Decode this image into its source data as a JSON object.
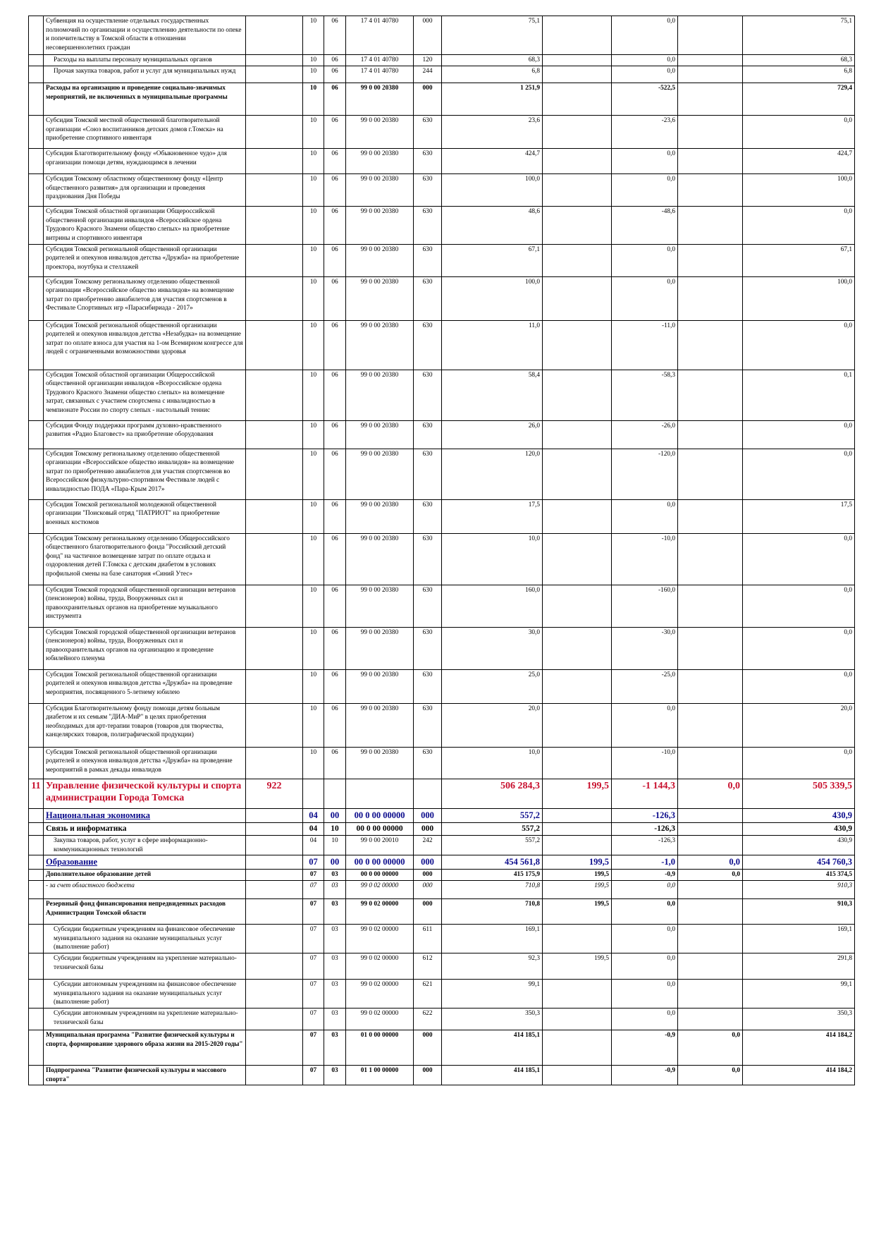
{
  "rows": [
    {
      "num": "",
      "name": "Субвенция на осуществление отдельных государственных полномочий по организации и осуществлению деятельности по опеке и попечительству в Томской области в отношении несовершеннолетних граждан",
      "code": "",
      "rz": "10",
      "pr": "06",
      "csr": "17 4 01 40780",
      "vr": "000",
      "v1": "75,1",
      "v2": "",
      "v3": "0,0",
      "v4": "",
      "v5": "75,1"
    },
    {
      "num": "",
      "name": "Расходы на выплаты персоналу муниципальных органов",
      "code": "",
      "rz": "10",
      "pr": "06",
      "csr": "17 4 01 40780",
      "vr": "120",
      "v1": "68,3",
      "v2": "",
      "v3": "0,0",
      "v4": "",
      "v5": "68,3"
    },
    {
      "num": "",
      "name": "Прочая закупка товаров, работ и услуг для муниципальных нужд",
      "code": "",
      "rz": "10",
      "pr": "06",
      "csr": "17 4 01 40780",
      "vr": "244",
      "v1": "6,8",
      "v2": "",
      "v3": "0,0",
      "v4": "",
      "v5": "6,8"
    },
    {
      "num": "",
      "name": "Расходы на организацию и проведение социально-значимых мероприятий, не включенных в муниципальные программы",
      "code": "",
      "rz": "10",
      "pr": "06",
      "csr": "99 0 00 20380",
      "vr": "000",
      "v1": "1 251,9",
      "v2": "",
      "v3": "-522,5",
      "v4": "",
      "v5": "729,4"
    },
    {
      "num": "",
      "name": "Субсидия Томской местной общественной благотворительной организации «Союз воспитанников детских домов г.Томска» на приобретение спортивного инвентаря",
      "code": "",
      "rz": "10",
      "pr": "06",
      "csr": "99 0 00 20380",
      "vr": "630",
      "v1": "23,6",
      "v2": "",
      "v3": "-23,6",
      "v4": "",
      "v5": "0,0"
    },
    {
      "num": "",
      "name": "Субсидия Благотворительному фонду «Обыкновенное чудо» для организации помощи детям, нуждающимся в лечении",
      "code": "",
      "rz": "10",
      "pr": "06",
      "csr": "99 0 00 20380",
      "vr": "630",
      "v1": "424,7",
      "v2": "",
      "v3": "0,0",
      "v4": "",
      "v5": "424,7"
    },
    {
      "num": "",
      "name": "Субсидия Томскому областному общественному фонду «Центр общественного развития» для организации и проведения празднования Дня Победы",
      "code": "",
      "rz": "10",
      "pr": "06",
      "csr": "99 0 00 20380",
      "vr": "630",
      "v1": "100,0",
      "v2": "",
      "v3": "0,0",
      "v4": "",
      "v5": "100,0"
    },
    {
      "num": "",
      "name": "Субсидия Томской областной организации Общероссийской общественной организации инвалидов «Всероссийское ордена Трудового Красного Знамени общество слепых» на приобретение витрины и спортивного инвентаря",
      "code": "",
      "rz": "10",
      "pr": "06",
      "csr": "99 0 00 20380",
      "vr": "630",
      "v1": "48,6",
      "v2": "",
      "v3": "-48,6",
      "v4": "",
      "v5": "0,0"
    },
    {
      "num": "",
      "name": "Субсидия Томской региональной общественной организации родителей и опекунов инвалидов детства «Дружба» на приобретение проектора, ноутбука и стеллажей",
      "code": "",
      "rz": "10",
      "pr": "06",
      "csr": "99 0 00 20380",
      "vr": "630",
      "v1": "67,1",
      "v2": "",
      "v3": "0,0",
      "v4": "",
      "v5": "67,1"
    },
    {
      "num": "",
      "name": "Субсидия Томскому региональному отделению общественной организации «Всероссийское общество инвалидов» на возмещение затрат по приобретению авиабилетов для участия спортсменов в Фестивале Спортивных игр «Парасибириада - 2017»",
      "code": "",
      "rz": "10",
      "pr": "06",
      "csr": "99 0 00 20380",
      "vr": "630",
      "v1": "100,0",
      "v2": "",
      "v3": "0,0",
      "v4": "",
      "v5": "100,0"
    },
    {
      "num": "",
      "name": "Субсидия Томской региональной общественной организации родителей и опекунов инвалидов детства «Незабудка» на возмещение затрат по оплате взноса для участия на 1-ом Всемирном конгрессе для людей с ограниченными возможностями здоровья",
      "code": "",
      "rz": "10",
      "pr": "06",
      "csr": "99 0 00 20380",
      "vr": "630",
      "v1": "11,0",
      "v2": "",
      "v3": "-11,0",
      "v4": "",
      "v5": "0,0"
    },
    {
      "num": "",
      "name": "Субсидия Томской областной организации Общероссийской общественной организации инвалидов «Всероссийское ордена Трудового Красного Знамени общество слепых» на возмещение затрат, связанных с участием спортсмена с инвалидностью в чемпионате России по спорту слепых - настольный теннис",
      "code": "",
      "rz": "10",
      "pr": "06",
      "csr": "99 0 00 20380",
      "vr": "630",
      "v1": "58,4",
      "v2": "",
      "v3": "-58,3",
      "v4": "",
      "v5": "0,1"
    },
    {
      "num": "",
      "name": "Субсидия Фонду поддержки программ духовно-нравственного развития «Радио Благовест» на приобретение оборудования",
      "code": "",
      "rz": "10",
      "pr": "06",
      "csr": "99 0 00 20380",
      "vr": "630",
      "v1": "26,0",
      "v2": "",
      "v3": "-26,0",
      "v4": "",
      "v5": "0,0"
    },
    {
      "num": "",
      "name": "Субсидия Томскому региональному отделению общественной организации «Всероссийское общество инвалидов» на возмещение затрат по приобретению авиабилетов для участия спортсменов во Всероссийском физкультурно-спортивном Фестивале людей с инвалидностью ПОДА «Пара-Крым 2017»",
      "code": "",
      "rz": "10",
      "pr": "06",
      "csr": "99 0 00 20380",
      "vr": "630",
      "v1": "120,0",
      "v2": "",
      "v3": "-120,0",
      "v4": "",
      "v5": "0,0"
    },
    {
      "num": "",
      "name": "Субсидия Томской региональной молодежной общественной организации \"Поисковый отряд \"ПАТРИОТ\" на приобретение военных костюмов",
      "code": "",
      "rz": "10",
      "pr": "06",
      "csr": "99 0 00 20380",
      "vr": "630",
      "v1": "17,5",
      "v2": "",
      "v3": "0,0",
      "v4": "",
      "v5": "17,5"
    },
    {
      "num": "",
      "name": "Субсидия Томскому региональному отделению Общероссийского общественного благотворительного фонда \"Российский детский фонд\" на частичное возмещение затрат по оплате отдыха и оздоровления детей Г.Томска с детским диабетом в условиях профильной смены на базе санатория «Синий Утес»",
      "code": "",
      "rz": "10",
      "pr": "06",
      "csr": "99 0 00 20380",
      "vr": "630",
      "v1": "10,0",
      "v2": "",
      "v3": "-10,0",
      "v4": "",
      "v5": "0,0"
    },
    {
      "num": "",
      "name": " Субсидия Томской городской общественной организации ветеранов (пенсионеров) войны, труда, Вооруженных сил и правоохранительных органов на приобретение музыкального инструмента",
      "code": "",
      "rz": "10",
      "pr": "06",
      "csr": "99 0 00 20380",
      "vr": "630",
      "v1": "160,0",
      "v2": "",
      "v3": "-160,0",
      "v4": "",
      "v5": "0,0"
    },
    {
      "num": "",
      "name": " Субсидия Томской городской общественной организации ветеранов (пенсионеров) войны, труда, Вооруженных сил и правоохранительных органов на организацию и проведение юбилейного пленума",
      "code": "",
      "rz": "10",
      "pr": "06",
      "csr": "99 0 00 20380",
      "vr": "630",
      "v1": "30,0",
      "v2": "",
      "v3": "-30,0",
      "v4": "",
      "v5": "0,0"
    },
    {
      "num": "",
      "name": "Субсидия Томской региональной общественной организации родителей и опекунов инвалидов детства «Дружба» на проведение мероприятия, посвященного 5-летнему юбилею",
      "code": "",
      "rz": "10",
      "pr": "06",
      "csr": "99 0 00 20380",
      "vr": "630",
      "v1": "25,0",
      "v2": "",
      "v3": "-25,0",
      "v4": "",
      "v5": "0,0"
    },
    {
      "num": "",
      "name": "Субсидия Благотворительному фонду помощи детям больным диабетом и их семьям \"ДИА-МиР\" в целях приобретения необходимых для арт-терапии товаров (товаров для творчества, канцелярских товаров, полиграфической продукции)",
      "code": "",
      "rz": "10",
      "pr": "06",
      "csr": "99 0 00 20380",
      "vr": "630",
      "v1": "20,0",
      "v2": "",
      "v3": "0,0",
      "v4": "",
      "v5": "20,0"
    },
    {
      "num": "",
      "name": "Субсидия Томской региональной общественной организации родителей и опекунов инвалидов детства «Дружба» на проведение мероприятий в рамках декады инвалидов",
      "code": "",
      "rz": "10",
      "pr": "06",
      "csr": "99 0 00 20380",
      "vr": "630",
      "v1": "10,0",
      "v2": "",
      "v3": "-10,0",
      "v4": "",
      "v5": "0,0"
    },
    {
      "num": "11",
      "name": "Управление физической культуры и спорта администрации Города Томска",
      "code": "922",
      "rz": "",
      "pr": "",
      "csr": "",
      "vr": "",
      "v1": "506 284,3",
      "v2": "199,5",
      "v3": "-1 144,3",
      "v4": "0,0",
      "v5": "505 339,5"
    },
    {
      "num": "",
      "name": "Национальная экономика",
      "code": "",
      "rz": "04",
      "pr": "00",
      "csr": "00 0 00 00000",
      "vr": "000",
      "v1": "557,2",
      "v2": "",
      "v3": "-126,3",
      "v4": "",
      "v5": "430,9"
    },
    {
      "num": "",
      "name": "Связь и информатика",
      "code": "",
      "rz": "04",
      "pr": "10",
      "csr": "00 0 00 00000",
      "vr": "000",
      "v1": "557,2",
      "v2": "",
      "v3": "-126,3",
      "v4": "",
      "v5": "430,9"
    },
    {
      "num": "",
      "name": "Закупка товаров, работ, услуг в сфере информационно-коммуникационных технологий",
      "code": "",
      "rz": "04",
      "pr": "10",
      "csr": "99 0 00 20010",
      "vr": "242",
      "v1": "557,2",
      "v2": "",
      "v3": "-126,3",
      "v4": "",
      "v5": "430,9"
    },
    {
      "num": "",
      "name": "Образование",
      "code": "",
      "rz": "07",
      "pr": "00",
      "csr": "00 0 00 00000",
      "vr": "000",
      "v1": "454 561,8",
      "v2": "199,5",
      "v3": "-1,0",
      "v4": "0,0",
      "v5": "454 760,3"
    },
    {
      "num": "",
      "name": "Дополнительное образование детей",
      "code": "",
      "rz": "07",
      "pr": "03",
      "csr": "00 0 00 00000",
      "vr": "000",
      "v1": "415 175,9",
      "v2": "199,5",
      "v3": "-0,9",
      "v4": "0,0",
      "v5": "415 374,5"
    },
    {
      "num": "",
      "name": " - за счет областного бюджета",
      "code": "",
      "rz": "07",
      "pr": "03",
      "csr": "99 0 02 00000",
      "vr": "000",
      "v1": "710,8",
      "v2": "199,5",
      "v3": "0,0",
      "v4": "",
      "v5": "910,3"
    },
    {
      "num": "",
      "name": "Резервный фонд финансирования непредвиденных расходов Администрации Томской области",
      "code": "",
      "rz": "07",
      "pr": "03",
      "csr": "99 0 02 00000",
      "vr": "000",
      "v1": "710,8",
      "v2": "199,5",
      "v3": "0,0",
      "v4": "",
      "v5": "910,3"
    },
    {
      "num": "",
      "name": "Субсидии бюджетным учреждениям на финансовое обеспечение муниципального задания на оказание муниципальных услуг (выполнение работ)",
      "code": "",
      "rz": "07",
      "pr": "03",
      "csr": "99 0 02 00000",
      "vr": "611",
      "v1": "169,1",
      "v2": "",
      "v3": "0,0",
      "v4": "",
      "v5": "169,1"
    },
    {
      "num": "",
      "name": "Субсидии бюджетным учреждениям на укрепление материально-технической базы",
      "code": "",
      "rz": "07",
      "pr": "03",
      "csr": "99 0 02 00000",
      "vr": "612",
      "v1": "92,3",
      "v2": "199,5",
      "v3": "0,0",
      "v4": "",
      "v5": "291,8"
    },
    {
      "num": "",
      "name": "Субсидии автономным учреждениям на финансовое обеспечение муниципального задания на оказание муниципальных услуг (выполнение работ)",
      "code": "",
      "rz": "07",
      "pr": "03",
      "csr": "99 0 02 00000",
      "vr": "621",
      "v1": "99,1",
      "v2": "",
      "v3": "0,0",
      "v4": "",
      "v5": "99,1"
    },
    {
      "num": "",
      "name": "Субсидии автономным учреждениям на укрепление материально-технической базы",
      "code": "",
      "rz": "07",
      "pr": "03",
      "csr": "99 0 02 00000",
      "vr": "622",
      "v1": "350,3",
      "v2": "",
      "v3": "0,0",
      "v4": "",
      "v5": "350,3"
    },
    {
      "num": "",
      "name": "Муниципальная программа \"Развитие физической культуры и спорта, формирование здорового образа жизни на 2015-2020 годы\"",
      "code": "",
      "rz": "07",
      "pr": "03",
      "csr": "01 0 00 00000",
      "vr": "000",
      "v1": "414 185,1",
      "v2": "",
      "v3": "-0,9",
      "v4": "0,0",
      "v5": "414 184,2"
    },
    {
      "num": "",
      "name": "Подпрограмма \"Развитие физической культуры и массового спорта\"",
      "code": "",
      "rz": "07",
      "pr": "03",
      "csr": "01 1 00 00000",
      "vr": "000",
      "v1": "414 185,1",
      "v2": "",
      "v3": "-0,9",
      "v4": "0,0",
      "v5": "414 184,2"
    }
  ]
}
